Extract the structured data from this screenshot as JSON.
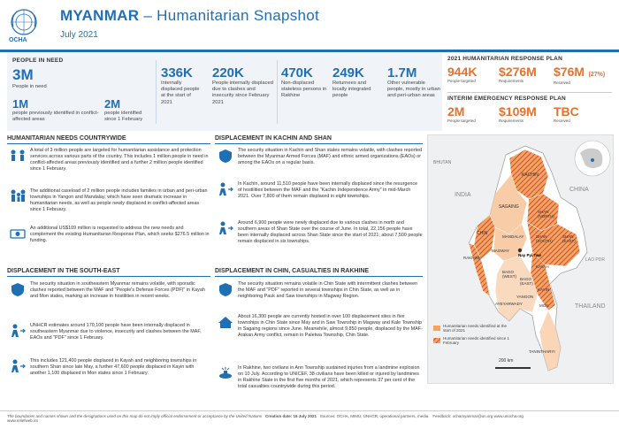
{
  "header": {
    "org": "OCHA",
    "title_main": "MYANMAR",
    "title_sub": " – Humanitarian Snapshot",
    "date": "July 2021"
  },
  "people_in_need": {
    "heading": "PEOPLE IN NEED",
    "total_value": "3M",
    "total_label": "People in need",
    "prev_value": "1M",
    "prev_label": "people previously identified in conflict-affected areas",
    "new_value": "2M",
    "new_label": "people identified since 1 February",
    "stats": [
      {
        "value": "336K",
        "label": "Internally displaced people at the start of 2021"
      },
      {
        "value": "220K",
        "label": "People internally displaced due to clashes and insecurity since February 2021"
      },
      {
        "value": "470K",
        "label": "Non-displaced stateless persons in Rakhine"
      },
      {
        "value": "249K",
        "label": "Returnees and locally integrated people"
      },
      {
        "value": "1.7M",
        "label": "Other vulnerable people, mostly in urban and peri-urban areas"
      }
    ]
  },
  "plan": {
    "hrp_heading": "2021 HUMANITARIAN RESPONSE PLAN",
    "hrp": [
      {
        "value": "944K",
        "label": "People targeted"
      },
      {
        "value": "$276M",
        "label": "Requirements"
      },
      {
        "value": "$76M",
        "extra": "(27%)",
        "label": "Received"
      }
    ],
    "ierp_heading": "INTERIM EMERGENCY RESPONSE PLAN",
    "ierp": [
      {
        "value": "2M",
        "label": "People targeted"
      },
      {
        "value": "$109M",
        "label": "Requirements"
      },
      {
        "value": "TBC",
        "label": "Received"
      }
    ]
  },
  "needs": {
    "heading": "HUMANITARIAN NEEDS COUNTRYWIDE",
    "p1": "A total of 3 million people are targeted for humanitarian assistance and protection services across various parts of the country. This includes 1 million people in need in conflict-affected areas previously identified and a further 2 million people identified since 1 February.",
    "p2": "The additional caseload of 2 million people includes families in urban and peri-urban townships in Yangon and Mandalay, which have seen dramatic increase in humanitarian needs, as well as people newly displaced in conflict-affected areas since 1 February.",
    "p3": "An additional US$109 million is requested to address the new needs and complement the existing Humanitarian Response Plan, which seeks $276.5 million in funding."
  },
  "kachin": {
    "heading": "DISPLACEMENT IN KACHIN AND SHAN",
    "p1": "The security situation in Kachin and Shan states remains volatile, with clashes reported between the Myanmar Armed Forces (MAF) and ethnic armed organizations (EAOs) or among the EAOs on a regular basis.",
    "p2": "In Kachin, around 11,510 people have been internally displaced since the resurgence of hostilities between the MAF and the \"Kachin Independence Army\" in mid-March 2021. Over 7,800 of them remain displaced in eight townships.",
    "p3": "Around 6,900 people were newly displaced due to various clashes in north and southern areas of Shan State over the course of June. In total, 22,156 people have been internally displaced across Shan State since the start of 2021; about 7,500 people remain displaced in six townships."
  },
  "southeast": {
    "heading": "DISPLACEMENT IN THE SOUTH-EAST",
    "p1": "The security situation in southeastern Myanmar remains volatile, with sporadic clashes reported between the MAF and \"People's Defense Forces (PDF)\" in Kayah and Mon states, marking an increase in hostilities in recent weeks.",
    "p2": "UNHCR estimates around 170,100 people have been internally displaced in southeastern Myanmar due to violence, insecurity and clashes between the MAF, EAOs and \"PDF\" since 1 February.",
    "p3": "This includes 121,400 people displaced in Kayah and neighboring townships in southern Shan since late May, a further 47,600 people displaced in Kayin with another 1,100 displaced in Mon states since 1 February."
  },
  "chin": {
    "heading": "DISPLACEMENT IN CHIN, CASUALTIES IN RAKHINE",
    "p1": "The security situation remains volatile in Chin State with intermittent clashes between the MAF and \"PDF\" reported in several townships in Chin State, as well as in neighboring Pauk and Saw townships in Magway Region.",
    "p2": "About 16,300 people are currently hosted in over 100 displacement sites in five townships in Chin State since May and in Saw Township in Magway and Kale Township in Sagaing regions since June. Meanwhile, almost 9,850 people, displaced by the MAF-Arakan Army conflict, remain in Paletwa Township, Chin State.",
    "p3": "In Rakhine, two civilians in Ann Township sustained injuries from a landmine explosion on 10 July. According to UNICEF, 38 civilians have been killed or injured by landmines in Rakhine State in the first five months of 2021, which represents 37 per cent of the total casualties countrywide during this period."
  },
  "map": {
    "labels": [
      "BHUTAN",
      "INDIA",
      "CHINA",
      "KACHIN",
      "SAGAING",
      "SHAN (NORTH)",
      "CHIN",
      "MANDALAY",
      "SHAN (SOUTH)",
      "SHAN (EAST)",
      "MAGWAY",
      "RAKHINE",
      "Nay Pyi Taw",
      "BAGO (WEST)",
      "BAGO (EAST)",
      "KAYAH",
      "YANGON",
      "KAYIN",
      "AYEYARWADY",
      "MON",
      "THAILAND",
      "TANINTHARYI",
      "LAO PDR"
    ],
    "legend1": "Humanitarian needs identified at the start of 2021",
    "legend2": "Humanitarian needs identified since 1 February",
    "scale": "200 km",
    "color_pre": "#f4a460",
    "color_new": "#c0392b"
  },
  "footer": {
    "disclaimer": "The boundaries and names shown and the designations used on this map do not imply official endorsement or acceptance by the United Nations",
    "creation": "Creation date: 16 July 2021",
    "sources": "Sources: OCHA, MIMU, UNHCR, operational partners, media.",
    "feedback": "Feedback: ochamyanmar@un.org www.unocha.org",
    "url": "www.reliefweb.int"
  }
}
